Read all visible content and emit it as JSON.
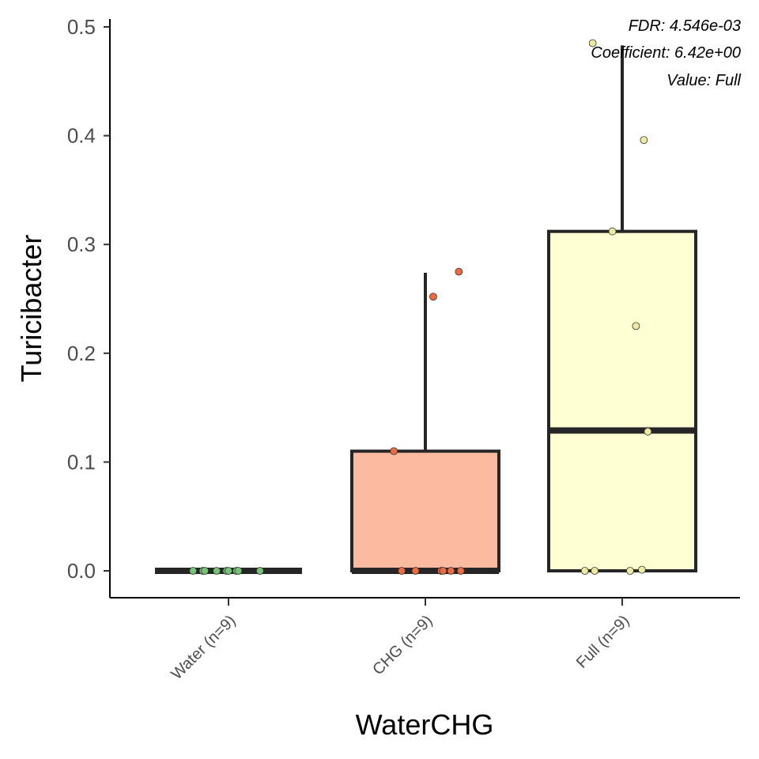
{
  "chart_data": {
    "type": "box",
    "xlabel": "WaterCHG",
    "ylabel": "Turicibacter",
    "ylim": [
      -0.025,
      0.5
    ],
    "yticks": [
      0.0,
      0.1,
      0.2,
      0.3,
      0.4,
      0.5
    ],
    "ytick_labels": [
      "0.0",
      "0.1",
      "0.2",
      "0.3",
      "0.4",
      "0.5"
    ],
    "categories": [
      "Water (n=9)",
      "CHG (n=9)",
      "Full (n=9)"
    ],
    "annotations": [
      "FDR: 4.546e-03",
      "Coefficient: 6.42e+00",
      "Value: Full"
    ],
    "grid": false,
    "legend": "none",
    "groups": [
      {
        "label": "Water (n=9)",
        "fill": "#c7e9c0",
        "point_color": "#74c476",
        "stats": {
          "q1": 0.0,
          "median": 0.0,
          "q3": 0.0,
          "whisker_low": 0.0,
          "whisker_high": 0.0
        },
        "points": [
          {
            "x": -0.18,
            "y": 0.0
          },
          {
            "x": -0.13,
            "y": 0.0
          },
          {
            "x": -0.12,
            "y": 0.0
          },
          {
            "x": -0.06,
            "y": 0.0
          },
          {
            "x": -0.01,
            "y": 0.0
          },
          {
            "x": 0.0,
            "y": 0.0
          },
          {
            "x": 0.04,
            "y": 0.0
          },
          {
            "x": 0.05,
            "y": 0.0
          },
          {
            "x": 0.16,
            "y": 0.0
          }
        ]
      },
      {
        "label": "CHG (n=9)",
        "fill": "#fcbba1",
        "point_color": "#f16a3f",
        "stats": {
          "q1": 0.0,
          "median": 0.0,
          "q3": 0.11,
          "whisker_low": 0.0,
          "whisker_high": 0.274
        },
        "points": [
          {
            "x": -0.16,
            "y": 0.11
          },
          {
            "x": 0.04,
            "y": 0.252
          },
          {
            "x": 0.17,
            "y": 0.275
          },
          {
            "x": -0.12,
            "y": 0.0
          },
          {
            "x": -0.05,
            "y": 0.0
          },
          {
            "x": 0.08,
            "y": 0.0
          },
          {
            "x": 0.09,
            "y": 0.0
          },
          {
            "x": 0.13,
            "y": 0.0
          },
          {
            "x": 0.18,
            "y": 0.0
          }
        ]
      },
      {
        "label": "Full (n=9)",
        "fill": "#ffffd4",
        "point_color": "#eeeaa0",
        "stats": {
          "q1": 0.0,
          "median": 0.129,
          "q3": 0.312,
          "whisker_low": 0.0,
          "whisker_high": 0.483
        },
        "points": [
          {
            "x": -0.15,
            "y": 0.485
          },
          {
            "x": 0.11,
            "y": 0.396
          },
          {
            "x": -0.05,
            "y": 0.312
          },
          {
            "x": 0.07,
            "y": 0.225
          },
          {
            "x": 0.13,
            "y": 0.128
          },
          {
            "x": -0.19,
            "y": 0.0
          },
          {
            "x": -0.14,
            "y": 0.0
          },
          {
            "x": 0.04,
            "y": 0.0
          },
          {
            "x": 0.1,
            "y": 0.001
          }
        ]
      }
    ]
  }
}
